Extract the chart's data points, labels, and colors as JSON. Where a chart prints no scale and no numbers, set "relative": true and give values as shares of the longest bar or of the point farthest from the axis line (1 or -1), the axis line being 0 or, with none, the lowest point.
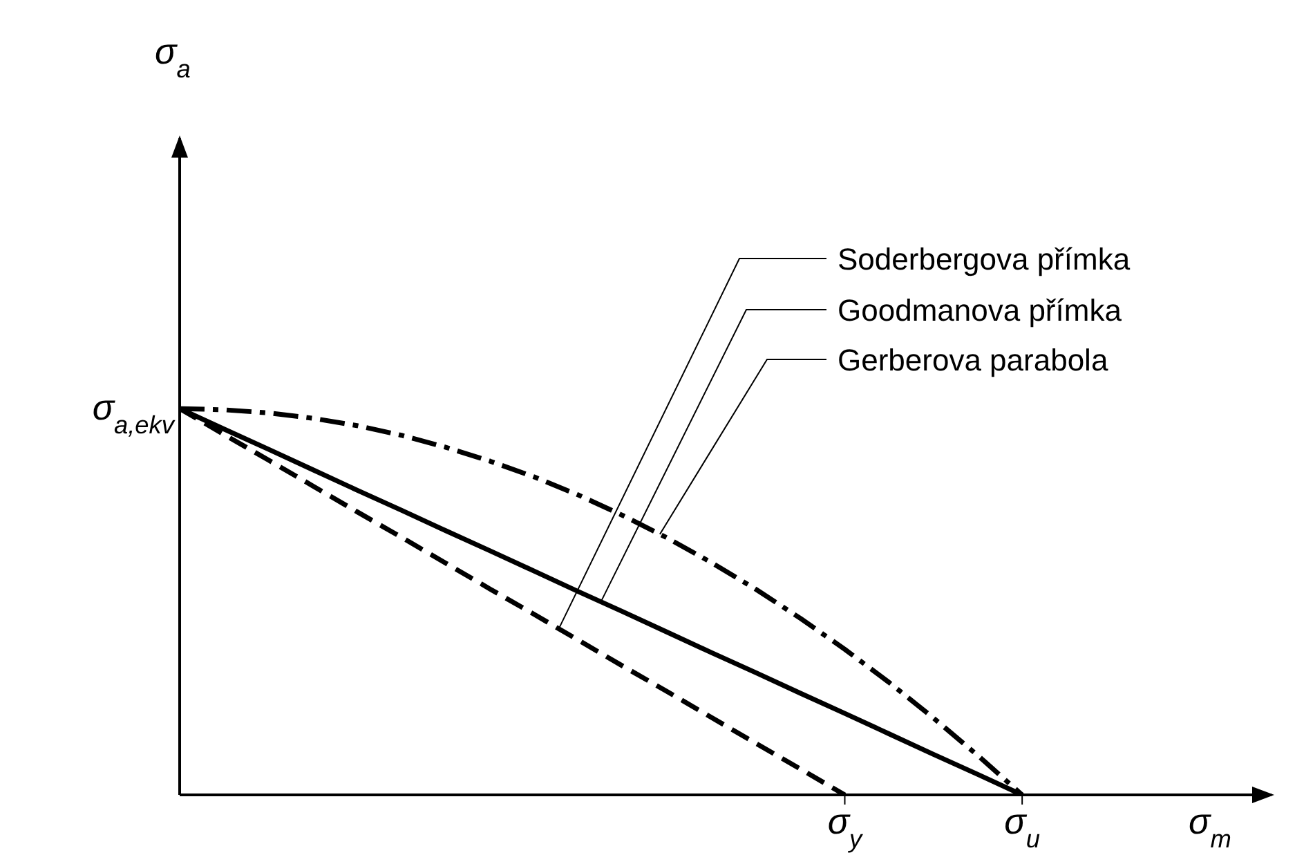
{
  "chart_data": {
    "type": "line",
    "relative": true,
    "xlabel": "σ$_{m}$",
    "annotations": [
      "σ$_{a}$",
      "σ$_{a,ekv}$"
    ],
    "categories": [
      null,
      null,
      null,
      null,
      null,
      null,
      null,
      null,
      null,
      null,
      null,
      null,
      null,
      null,
      null,
      "σ$_{y}$",
      null,
      null,
      null,
      "σ$_{u}$",
      null,
      null,
      null,
      null,
      null
    ],
    "series": [
      {
        "name": "Soderbergova přímka",
        "color": "#000000",
        "line_style": "dashed",
        "values": [
          1,
          0.933,
          0.867,
          0.8,
          0.733,
          0.667,
          0.6,
          0.533,
          0.467,
          0.4,
          0.333,
          0.267,
          0.2,
          0.133,
          0.067,
          0,
          null,
          null,
          null,
          null,
          null,
          null,
          null,
          null,
          null
        ]
      },
      {
        "name": "Goodmanova přímka",
        "color": "#000000",
        "line_style": "solid",
        "values": [
          1,
          0.947,
          0.895,
          0.842,
          0.789,
          0.737,
          0.684,
          0.632,
          0.579,
          0.526,
          0.474,
          0.421,
          0.368,
          0.316,
          0.263,
          0.211,
          0.158,
          0.105,
          0.053,
          0,
          null,
          null,
          null,
          null,
          null
        ]
      },
      {
        "name": "Gerberova parabola",
        "color": "#000000",
        "line_style": "dashdot",
        "values": [
          1,
          0.997,
          0.989,
          0.975,
          0.956,
          0.931,
          0.9,
          0.864,
          0.823,
          0.776,
          0.723,
          0.665,
          0.601,
          0.532,
          0.457,
          0.377,
          0.291,
          0.199,
          0.102,
          0,
          null,
          null,
          null,
          null,
          null
        ]
      }
    ],
    "marker": "none"
  }
}
